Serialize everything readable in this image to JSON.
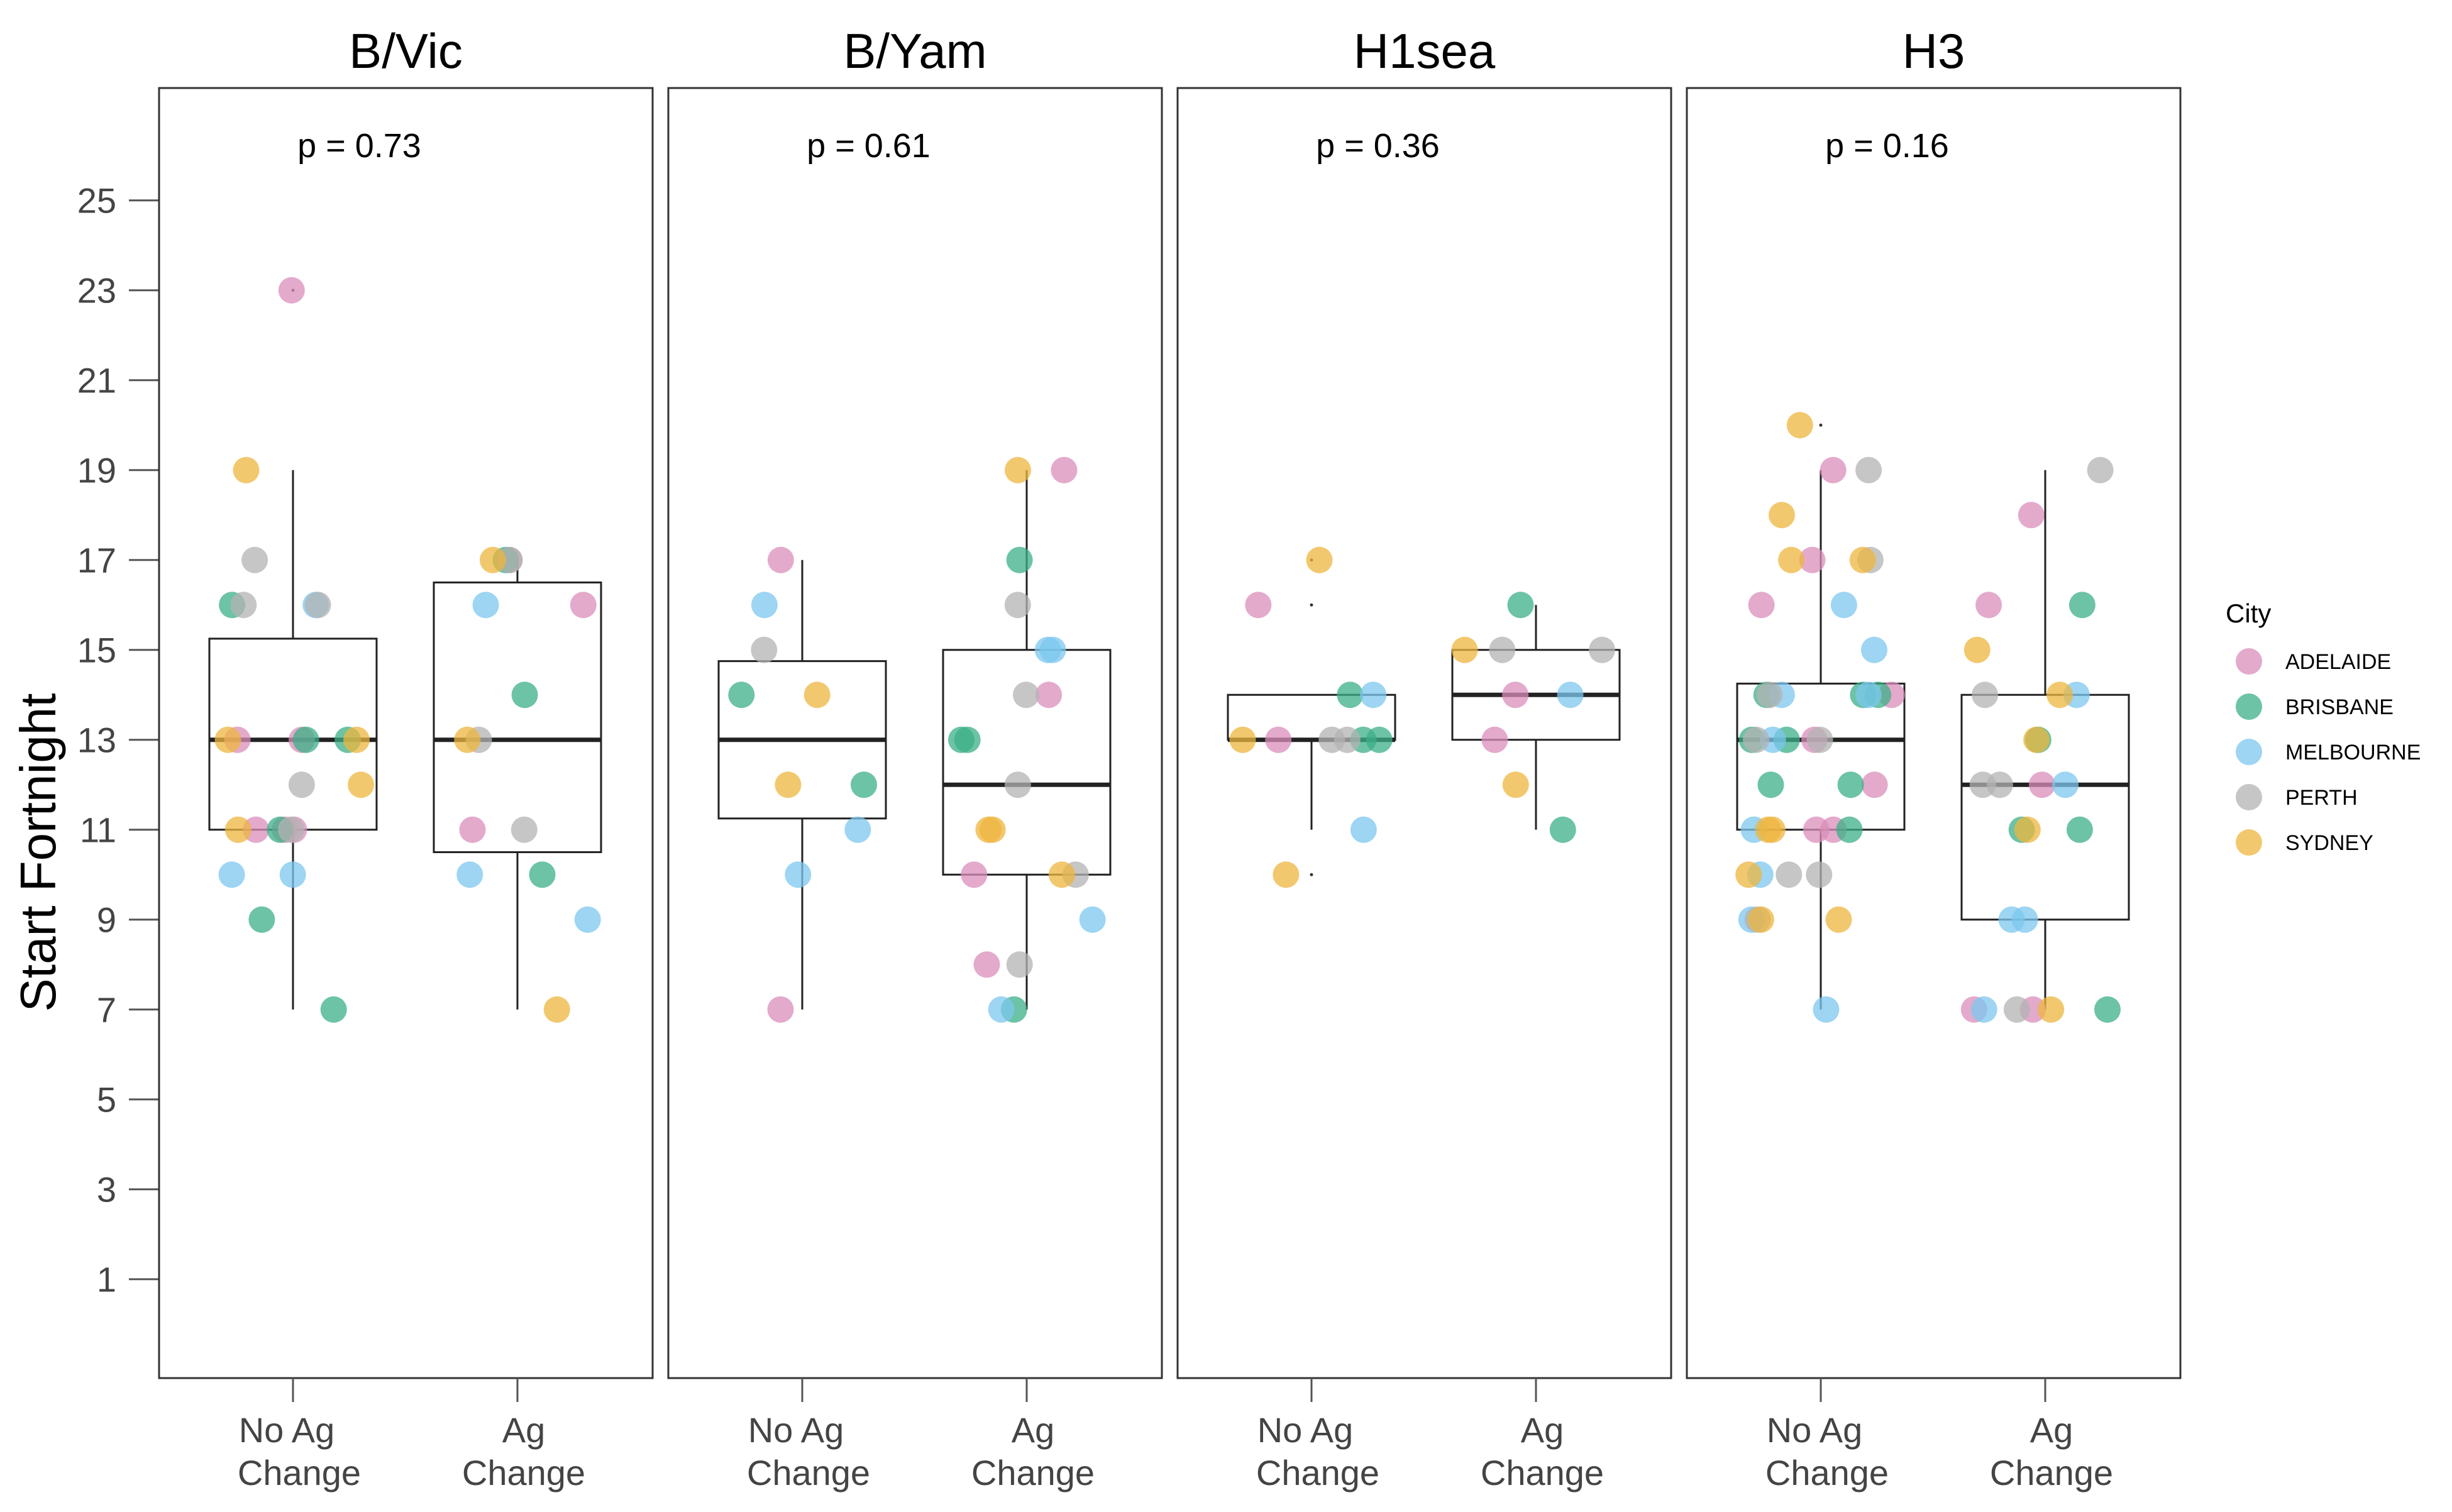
{
  "chart_data": {
    "type": "box",
    "ylabel": "Start Fortnight",
    "yticks": [
      1,
      3,
      5,
      7,
      9,
      11,
      13,
      15,
      17,
      19,
      21,
      23,
      25
    ],
    "ylim": [
      -1.2,
      27.5
    ],
    "categories": [
      [
        "No Ag",
        "Change"
      ],
      [
        "Ag",
        "Change"
      ]
    ],
    "legend": {
      "title": "City",
      "position": "right",
      "entries": [
        "ADELAIDE",
        "BRISBANE",
        "MELBOURNE",
        "PERTH",
        "SYDNEY"
      ]
    },
    "colors": {
      "ADELAIDE": "#D98EBB",
      "BRISBANE": "#3BAF87",
      "MELBOURNE": "#7CC7EF",
      "PERTH": "#B3B3B3",
      "SYDNEY": "#EEB53F"
    },
    "panels": [
      {
        "title": "B/Vic",
        "p_value": "p = 0.73",
        "boxes": [
          {
            "q1": 11,
            "median": 13,
            "q3": 15.25,
            "whisker_low": 7,
            "whisker_high": 19,
            "outliers": [
              23
            ]
          },
          {
            "q1": 10.5,
            "median": 13,
            "q3": 16.5,
            "whisker_low": 7,
            "whisker_high": 17,
            "outliers": []
          }
        ],
        "points": [
          [
            [
              "ADELAIDE",
              23
            ],
            [
              "ADELAIDE",
              13
            ],
            [
              "ADELAIDE",
              13
            ],
            [
              "ADELAIDE",
              11
            ],
            [
              "ADELAIDE",
              11
            ],
            [
              "ADELAIDE",
              11
            ],
            [
              "BRISBANE",
              16
            ],
            [
              "BRISBANE",
              13
            ],
            [
              "BRISBANE",
              13
            ],
            [
              "BRISBANE",
              11
            ],
            [
              "BRISBANE",
              9
            ],
            [
              "BRISBANE",
              7
            ],
            [
              "MELBOURNE",
              16
            ],
            [
              "MELBOURNE",
              10
            ],
            [
              "MELBOURNE",
              10
            ],
            [
              "PERTH",
              17
            ],
            [
              "PERTH",
              16
            ],
            [
              "PERTH",
              16
            ],
            [
              "PERTH",
              12
            ],
            [
              "PERTH",
              11
            ],
            [
              "SYDNEY",
              19
            ],
            [
              "SYDNEY",
              13
            ],
            [
              "SYDNEY",
              13
            ],
            [
              "SYDNEY",
              12
            ],
            [
              "SYDNEY",
              11
            ]
          ],
          [
            [
              "ADELAIDE",
              17
            ],
            [
              "ADELAIDE",
              16
            ],
            [
              "ADELAIDE",
              11
            ],
            [
              "BRISBANE",
              17
            ],
            [
              "BRISBANE",
              14
            ],
            [
              "BRISBANE",
              10
            ],
            [
              "MELBOURNE",
              16
            ],
            [
              "MELBOURNE",
              10
            ],
            [
              "MELBOURNE",
              9
            ],
            [
              "PERTH",
              17
            ],
            [
              "PERTH",
              13
            ],
            [
              "PERTH",
              11
            ],
            [
              "SYDNEY",
              17
            ],
            [
              "SYDNEY",
              13
            ],
            [
              "SYDNEY",
              7
            ]
          ]
        ]
      },
      {
        "title": "B/Yam",
        "p_value": "p = 0.61",
        "boxes": [
          {
            "q1": 11.25,
            "median": 13,
            "q3": 14.75,
            "whisker_low": 7,
            "whisker_high": 17,
            "outliers": []
          },
          {
            "q1": 10,
            "median": 12,
            "q3": 15,
            "whisker_low": 7,
            "whisker_high": 19,
            "outliers": []
          }
        ],
        "points": [
          [
            [
              "ADELAIDE",
              17
            ],
            [
              "ADELAIDE",
              7
            ],
            [
              "BRISBANE",
              14
            ],
            [
              "BRISBANE",
              12
            ],
            [
              "MELBOURNE",
              16
            ],
            [
              "MELBOURNE",
              11
            ],
            [
              "MELBOURNE",
              10
            ],
            [
              "PERTH",
              15
            ],
            [
              "SYDNEY",
              14
            ],
            [
              "SYDNEY",
              12
            ]
          ],
          [
            [
              "ADELAIDE",
              19
            ],
            [
              "ADELAIDE",
              14
            ],
            [
              "ADELAIDE",
              10
            ],
            [
              "ADELAIDE",
              8
            ],
            [
              "BRISBANE",
              17
            ],
            [
              "BRISBANE",
              13
            ],
            [
              "BRISBANE",
              13
            ],
            [
              "BRISBANE",
              7
            ],
            [
              "MELBOURNE",
              15
            ],
            [
              "MELBOURNE",
              15
            ],
            [
              "MELBOURNE",
              9
            ],
            [
              "MELBOURNE",
              7
            ],
            [
              "PERTH",
              16
            ],
            [
              "PERTH",
              14
            ],
            [
              "PERTH",
              12
            ],
            [
              "PERTH",
              10
            ],
            [
              "PERTH",
              8
            ],
            [
              "SYDNEY",
              19
            ],
            [
              "SYDNEY",
              11
            ],
            [
              "SYDNEY",
              11
            ],
            [
              "SYDNEY",
              10
            ]
          ]
        ]
      },
      {
        "title": "H1sea",
        "p_value": "p = 0.36",
        "boxes": [
          {
            "q1": 13,
            "median": 13,
            "q3": 14,
            "whisker_low": 11,
            "whisker_high": 14,
            "outliers": [
              17,
              16,
              10
            ]
          },
          {
            "q1": 13,
            "median": 14,
            "q3": 15,
            "whisker_low": 11,
            "whisker_high": 16,
            "outliers": []
          }
        ],
        "points": [
          [
            [
              "ADELAIDE",
              16
            ],
            [
              "ADELAIDE",
              13
            ],
            [
              "BRISBANE",
              14
            ],
            [
              "BRISBANE",
              13
            ],
            [
              "BRISBANE",
              13
            ],
            [
              "MELBOURNE",
              14
            ],
            [
              "MELBOURNE",
              11
            ],
            [
              "PERTH",
              13
            ],
            [
              "PERTH",
              13
            ],
            [
              "SYDNEY",
              17
            ],
            [
              "SYDNEY",
              13
            ],
            [
              "SYDNEY",
              10
            ]
          ],
          [
            [
              "ADELAIDE",
              14
            ],
            [
              "ADELAIDE",
              13
            ],
            [
              "BRISBANE",
              16
            ],
            [
              "BRISBANE",
              11
            ],
            [
              "MELBOURNE",
              14
            ],
            [
              "PERTH",
              15
            ],
            [
              "PERTH",
              15
            ],
            [
              "SYDNEY",
              15
            ],
            [
              "SYDNEY",
              12
            ]
          ]
        ]
      },
      {
        "title": "H3",
        "p_value": "p = 0.16",
        "boxes": [
          {
            "q1": 11,
            "median": 13,
            "q3": 14.25,
            "whisker_low": 7,
            "whisker_high": 19,
            "outliers": [
              20
            ]
          },
          {
            "q1": 9,
            "median": 12,
            "q3": 14,
            "whisker_low": 7,
            "whisker_high": 19,
            "outliers": []
          }
        ],
        "points": [
          [
            [
              "ADELAIDE",
              19
            ],
            [
              "ADELAIDE",
              17
            ],
            [
              "ADELAIDE",
              16
            ],
            [
              "ADELAIDE",
              14
            ],
            [
              "ADELAIDE",
              13
            ],
            [
              "ADELAIDE",
              12
            ],
            [
              "ADELAIDE",
              11
            ],
            [
              "ADELAIDE",
              11
            ],
            [
              "BRISBANE",
              14
            ],
            [
              "BRISBANE",
              14
            ],
            [
              "BRISBANE",
              14
            ],
            [
              "BRISBANE",
              13
            ],
            [
              "BRISBANE",
              13
            ],
            [
              "BRISBANE",
              12
            ],
            [
              "BRISBANE",
              12
            ],
            [
              "BRISBANE",
              11
            ],
            [
              "MELBOURNE",
              16
            ],
            [
              "MELBOURNE",
              15
            ],
            [
              "MELBOURNE",
              14
            ],
            [
              "MELBOURNE",
              14
            ],
            [
              "MELBOURNE",
              13
            ],
            [
              "MELBOURNE",
              11
            ],
            [
              "MELBOURNE",
              10
            ],
            [
              "MELBOURNE",
              9
            ],
            [
              "MELBOURNE",
              7
            ],
            [
              "PERTH",
              19
            ],
            [
              "PERTH",
              17
            ],
            [
              "PERTH",
              14
            ],
            [
              "PERTH",
              13
            ],
            [
              "PERTH",
              13
            ],
            [
              "PERTH",
              10
            ],
            [
              "PERTH",
              10
            ],
            [
              "PERTH",
              9
            ],
            [
              "SYDNEY",
              20
            ],
            [
              "SYDNEY",
              18
            ],
            [
              "SYDNEY",
              17
            ],
            [
              "SYDNEY",
              17
            ],
            [
              "SYDNEY",
              11
            ],
            [
              "SYDNEY",
              11
            ],
            [
              "SYDNEY",
              10
            ],
            [
              "SYDNEY",
              9
            ],
            [
              "SYDNEY",
              9
            ]
          ],
          [
            [
              "ADELAIDE",
              18
            ],
            [
              "ADELAIDE",
              16
            ],
            [
              "ADELAIDE",
              12
            ],
            [
              "ADELAIDE",
              7
            ],
            [
              "ADELAIDE",
              7
            ],
            [
              "BRISBANE",
              16
            ],
            [
              "BRISBANE",
              13
            ],
            [
              "BRISBANE",
              11
            ],
            [
              "BRISBANE",
              11
            ],
            [
              "BRISBANE",
              7
            ],
            [
              "MELBOURNE",
              14
            ],
            [
              "MELBOURNE",
              12
            ],
            [
              "MELBOURNE",
              9
            ],
            [
              "MELBOURNE",
              9
            ],
            [
              "MELBOURNE",
              7
            ],
            [
              "PERTH",
              19
            ],
            [
              "PERTH",
              14
            ],
            [
              "PERTH",
              12
            ],
            [
              "PERTH",
              12
            ],
            [
              "PERTH",
              7
            ],
            [
              "SYDNEY",
              15
            ],
            [
              "SYDNEY",
              14
            ],
            [
              "SYDNEY",
              13
            ],
            [
              "SYDNEY",
              11
            ],
            [
              "SYDNEY",
              7
            ]
          ]
        ]
      }
    ]
  }
}
